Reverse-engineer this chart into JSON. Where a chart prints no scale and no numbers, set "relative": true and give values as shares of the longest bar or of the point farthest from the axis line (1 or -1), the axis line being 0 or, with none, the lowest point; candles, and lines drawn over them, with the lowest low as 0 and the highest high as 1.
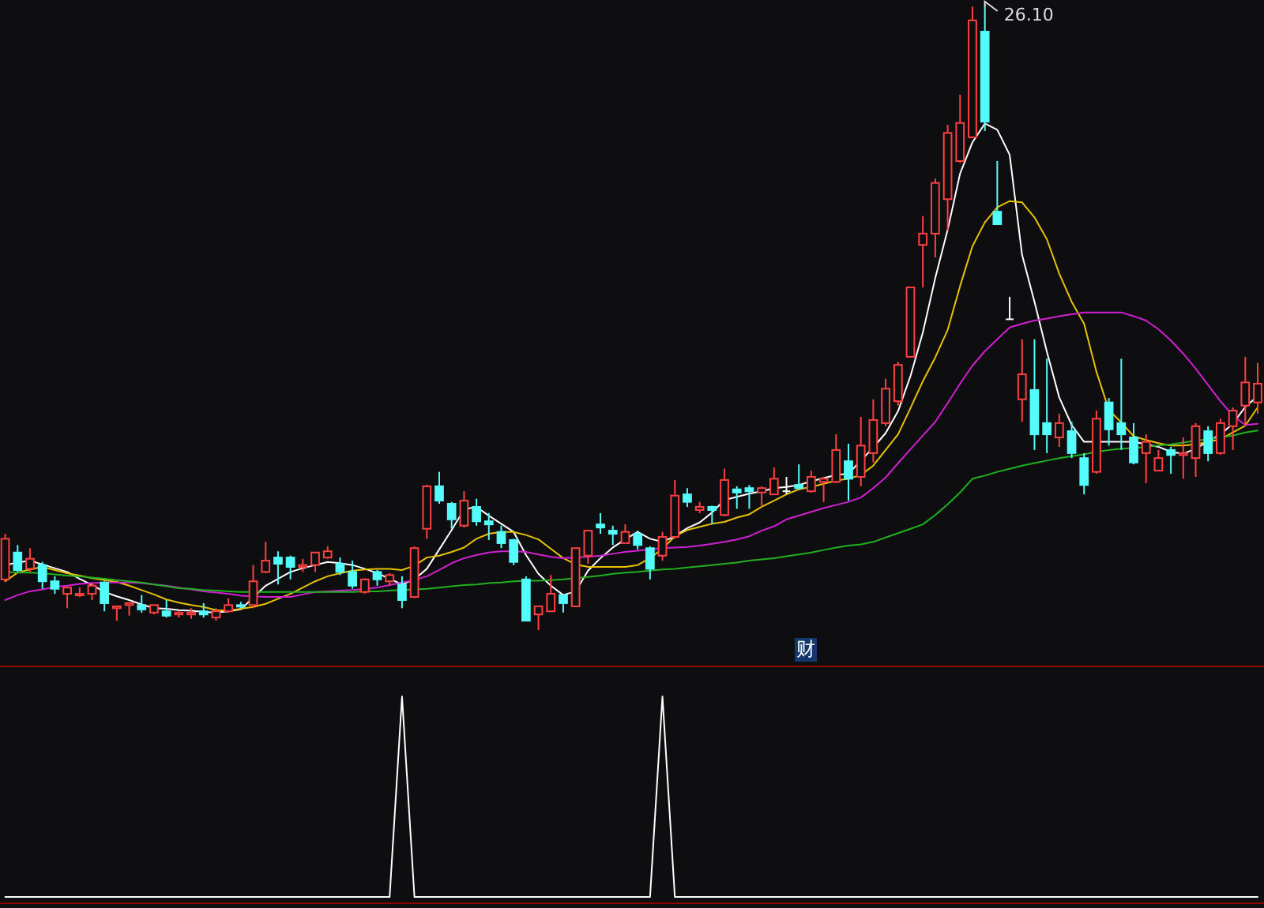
{
  "chart_data": [
    {
      "type": "candlestick",
      "relative": true,
      "categories": [
        null,
        null,
        null,
        null,
        null,
        null,
        null,
        null,
        null,
        null,
        null,
        null,
        null,
        null,
        null,
        null,
        null,
        null,
        null,
        null,
        null,
        null,
        null,
        null,
        null,
        null,
        null,
        null,
        null,
        null,
        null,
        null,
        null,
        null,
        null,
        null,
        null,
        null,
        null,
        null,
        null,
        null,
        null,
        null,
        null,
        null,
        null,
        null,
        null,
        null,
        null,
        null,
        null,
        null,
        null,
        null,
        null,
        null,
        null,
        null,
        null,
        null,
        null,
        null,
        null,
        null,
        null,
        null,
        null,
        null,
        null,
        null,
        null,
        null,
        null,
        null,
        null,
        null,
        null,
        null,
        null,
        null,
        null,
        null,
        null,
        null,
        null,
        null,
        null,
        null,
        null,
        null,
        null,
        null,
        null,
        null,
        null,
        null,
        null,
        null,
        null,
        null
      ],
      "ohlc": [
        [
          0.081,
          0.154,
          0.078,
          0.146
        ],
        [
          0.124,
          0.136,
          0.093,
          0.096
        ],
        [
          0.098,
          0.131,
          0.093,
          0.114
        ],
        [
          0.104,
          0.109,
          0.066,
          0.078
        ],
        [
          0.078,
          0.086,
          0.058,
          0.066
        ],
        [
          0.058,
          0.068,
          0.035,
          0.068
        ],
        [
          0.056,
          0.068,
          0.053,
          0.058
        ],
        [
          0.058,
          0.076,
          0.048,
          0.071
        ],
        [
          0.076,
          0.078,
          0.03,
          0.043
        ],
        [
          0.035,
          0.038,
          0.015,
          0.038
        ],
        [
          0.04,
          0.043,
          0.023,
          0.043
        ],
        [
          0.04,
          0.056,
          0.028,
          0.033
        ],
        [
          0.028,
          0.04,
          0.025,
          0.04
        ],
        [
          0.03,
          0.048,
          0.02,
          0.023
        ],
        [
          0.025,
          0.03,
          0.02,
          0.028
        ],
        [
          0.025,
          0.035,
          0.018,
          0.028
        ],
        [
          0.03,
          0.043,
          0.02,
          0.025
        ],
        [
          0.02,
          0.035,
          0.015,
          0.03
        ],
        [
          0.03,
          0.051,
          0.028,
          0.04
        ],
        [
          0.04,
          0.045,
          0.035,
          0.038
        ],
        [
          0.04,
          0.104,
          0.035,
          0.078
        ],
        [
          0.093,
          0.141,
          0.091,
          0.111
        ],
        [
          0.116,
          0.126,
          0.073,
          0.106
        ],
        [
          0.116,
          0.119,
          0.081,
          0.101
        ],
        [
          0.101,
          0.114,
          0.093,
          0.104
        ],
        [
          0.104,
          0.124,
          0.093,
          0.124
        ],
        [
          0.116,
          0.134,
          0.114,
          0.126
        ],
        [
          0.106,
          0.116,
          0.088,
          0.093
        ],
        [
          0.093,
          0.111,
          0.066,
          0.071
        ],
        [
          0.061,
          0.083,
          0.058,
          0.081
        ],
        [
          0.093,
          0.096,
          0.071,
          0.081
        ],
        [
          0.078,
          0.091,
          0.071,
          0.088
        ],
        [
          0.073,
          0.086,
          0.035,
          0.048
        ],
        [
          0.053,
          0.134,
          0.051,
          0.131
        ],
        [
          0.162,
          0.232,
          0.146,
          0.23
        ],
        [
          0.23,
          0.253,
          0.202,
          0.207
        ],
        [
          0.202,
          0.205,
          0.162,
          0.177
        ],
        [
          0.167,
          0.222,
          0.164,
          0.207
        ],
        [
          0.197,
          0.21,
          0.167,
          0.174
        ],
        [
          0.174,
          0.187,
          0.144,
          0.169
        ],
        [
          0.157,
          0.167,
          0.131,
          0.139
        ],
        [
          0.144,
          0.146,
          0.104,
          0.109
        ],
        [
          0.081,
          0.086,
          0.015,
          0.015
        ],
        [
          0.025,
          0.038,
          0,
          0.038
        ],
        [
          0.03,
          0.088,
          0.03,
          0.058
        ],
        [
          0.056,
          0.056,
          0.028,
          0.043
        ],
        [
          0.038,
          0.131,
          0.038,
          0.131
        ],
        [
          0.119,
          0.159,
          0.106,
          0.159
        ],
        [
          0.169,
          0.187,
          0.154,
          0.164
        ],
        [
          0.159,
          0.167,
          0.136,
          0.154
        ],
        [
          0.139,
          0.169,
          0.139,
          0.157
        ],
        [
          0.154,
          0.159,
          0.129,
          0.136
        ],
        [
          0.131,
          0.134,
          0.081,
          0.098
        ],
        [
          0.119,
          0.157,
          0.111,
          0.149
        ],
        [
          0.149,
          0.24,
          0.146,
          0.215
        ],
        [
          0.217,
          0.227,
          0.197,
          0.205
        ],
        [
          0.192,
          0.205,
          0.187,
          0.197
        ],
        [
          0.197,
          0.199,
          0.169,
          0.192
        ],
        [
          0.184,
          0.258,
          0.182,
          0.24
        ],
        [
          0.225,
          0.23,
          0.194,
          0.22
        ],
        [
          0.227,
          0.232,
          0.194,
          0.222
        ],
        [
          0.22,
          0.23,
          0.197,
          0.227
        ],
        [
          0.217,
          0.26,
          0.217,
          0.242
        ],
        [
          0.222,
          0.245,
          0.217,
          0.222
        ],
        [
          0.232,
          0.265,
          0.225,
          0.227
        ],
        [
          0.222,
          0.255,
          0.22,
          0.245
        ],
        [
          0.237,
          0.245,
          0.205,
          0.242
        ],
        [
          0.237,
          0.313,
          0.235,
          0.288
        ],
        [
          0.27,
          0.298,
          0.207,
          0.242
        ],
        [
          0.245,
          0.341,
          0.23,
          0.295
        ],
        [
          0.283,
          0.369,
          0.268,
          0.336
        ],
        [
          0.331,
          0.402,
          0.326,
          0.386
        ],
        [
          0.366,
          0.429,
          0.359,
          0.424
        ],
        [
          0.437,
          0.548,
          0.437,
          0.548
        ],
        [
          0.616,
          0.662,
          0.548,
          0.634
        ],
        [
          0.634,
          0.722,
          0.596,
          0.715
        ],
        [
          0.689,
          0.808,
          0.639,
          0.795
        ],
        [
          0.75,
          0.856,
          0.747,
          0.811
        ],
        [
          0.788,
          0.997,
          0.788,
          0.975
        ],
        [
          0.957,
          1,
          0.798,
          0.813
        ],
        [
          0.669,
          0.75,
          0.649,
          0.649
        ],
        [
          0.497,
          0.533,
          0.497,
          0.497
        ],
        [
          0.369,
          0.465,
          0.333,
          0.409
        ],
        [
          0.384,
          0.465,
          0.288,
          0.313
        ],
        [
          0.331,
          0.434,
          0.283,
          0.313
        ],
        [
          0.308,
          0.346,
          0.293,
          0.331
        ],
        [
          0.318,
          0.333,
          0.275,
          0.283
        ],
        [
          0.275,
          0.283,
          0.217,
          0.232
        ],
        [
          0.253,
          0.351,
          0.25,
          0.338
        ],
        [
          0.364,
          0.371,
          0.295,
          0.321
        ],
        [
          0.331,
          0.434,
          0.288,
          0.313
        ],
        [
          0.308,
          0.331,
          0.265,
          0.268
        ],
        [
          0.283,
          0.313,
          0.235,
          0.301
        ],
        [
          0.255,
          0.288,
          0.255,
          0.275
        ],
        [
          0.288,
          0.293,
          0.25,
          0.28
        ],
        [
          0.28,
          0.308,
          0.242,
          0.283
        ],
        [
          0.275,
          0.331,
          0.245,
          0.326
        ],
        [
          0.318,
          0.326,
          0.27,
          0.283
        ],
        [
          0.283,
          0.338,
          0.28,
          0.331
        ],
        [
          0.326,
          0.356,
          0.288,
          0.351
        ],
        [
          0.359,
          0.437,
          0.326,
          0.396
        ],
        [
          0.364,
          0.427,
          0.346,
          0.394
        ]
      ],
      "colors": [
        "#ff4040",
        "#54fcfc",
        "#ff4040",
        "#54fcfc",
        "#54fcfc",
        "#ff4040",
        "#ff4040",
        "#ff4040",
        "#54fcfc",
        "#ff4040",
        "#ff4040",
        "#54fcfc",
        "#ff4040",
        "#54fcfc",
        "#ff4040",
        "#ff4040",
        "#54fcfc",
        "#ff4040",
        "#ff4040",
        "#54fcfc",
        "#ff4040",
        "#ff4040",
        "#54fcfc",
        "#54fcfc",
        "#ff4040",
        "#ff4040",
        "#ff4040",
        "#54fcfc",
        "#54fcfc",
        "#ff4040",
        "#54fcfc",
        "#ff4040",
        "#54fcfc",
        "#ff4040",
        "#ff4040",
        "#54fcfc",
        "#54fcfc",
        "#ff4040",
        "#54fcfc",
        "#54fcfc",
        "#54fcfc",
        "#54fcfc",
        "#54fcfc",
        "#ff4040",
        "#ff4040",
        "#54fcfc",
        "#ff4040",
        "#ff4040",
        "#54fcfc",
        "#54fcfc",
        "#ff4040",
        "#54fcfc",
        "#54fcfc",
        "#ff4040",
        "#ff4040",
        "#54fcfc",
        "#ff4040",
        "#54fcfc",
        "#ff4040",
        "#54fcfc",
        "#54fcfc",
        "#ff4040",
        "#ff4040",
        "#ffffff",
        "#54fcfc",
        "#ff4040",
        "#ff4040",
        "#ff4040",
        "#54fcfc",
        "#ff4040",
        "#ff4040",
        "#ff4040",
        "#ff4040",
        "#ff4040",
        "#ff4040",
        "#ff4040",
        "#ff4040",
        "#ff4040",
        "#ff4040",
        "#54fcfc",
        "#54fcfc",
        "#ffffff",
        "#ff4040",
        "#54fcfc",
        "#54fcfc",
        "#ff4040",
        "#54fcfc",
        "#54fcfc",
        "#ff4040",
        "#54fcfc",
        "#54fcfc",
        "#54fcfc",
        "#ff4040",
        "#ff4040",
        "#54fcfc",
        "#ff4040",
        "#ff4040",
        "#54fcfc",
        "#ff4040",
        "#ff4040",
        "#ff4040",
        "#ff4040"
      ],
      "series": [
        {
          "type": "line",
          "color": "#ffffff",
          "values": [
            0.104,
            0.108,
            0.111,
            0.105,
            0.099,
            0.093,
            0.082,
            0.072,
            0.061,
            0.054,
            0.048,
            0.041,
            0.035,
            0.034,
            0.032,
            0.031,
            0.029,
            0.028,
            0.03,
            0.033,
            0.052,
            0.071,
            0.082,
            0.093,
            0.099,
            0.104,
            0.109,
            0.107,
            0.104,
            0.098,
            0.091,
            0.082,
            0.073,
            0.081,
            0.098,
            0.129,
            0.16,
            0.193,
            0.197,
            0.183,
            0.17,
            0.157,
            0.12,
            0.09,
            0.071,
            0.056,
            0.062,
            0.095,
            0.115,
            0.132,
            0.145,
            0.157,
            0.146,
            0.141,
            0.15,
            0.163,
            0.172,
            0.188,
            0.208,
            0.213,
            0.218,
            0.222,
            0.227,
            0.229,
            0.232,
            0.238,
            0.243,
            0.248,
            0.25,
            0.271,
            0.292,
            0.315,
            0.35,
            0.406,
            0.476,
            0.563,
            0.64,
            0.73,
            0.78,
            0.81,
            0.8,
            0.76,
            0.6,
            0.525,
            0.445,
            0.372,
            0.328,
            0.301,
            0.301,
            0.301,
            0.301,
            0.301,
            0.297,
            0.293,
            0.285,
            0.282,
            0.29,
            0.302,
            0.313,
            0.33,
            0.357,
            0.374
          ]
        },
        {
          "type": "line",
          "color": "#e6c200",
          "values": [
            0.078,
            0.092,
            0.097,
            0.101,
            0.096,
            0.091,
            0.087,
            0.083,
            0.08,
            0.077,
            0.071,
            0.064,
            0.057,
            0.049,
            0.044,
            0.04,
            0.037,
            0.032,
            0.031,
            0.034,
            0.037,
            0.042,
            0.05,
            0.058,
            0.068,
            0.078,
            0.086,
            0.091,
            0.095,
            0.097,
            0.098,
            0.098,
            0.096,
            0.103,
            0.116,
            0.119,
            0.125,
            0.132,
            0.146,
            0.154,
            0.157,
            0.157,
            0.152,
            0.145,
            0.13,
            0.115,
            0.105,
            0.101,
            0.101,
            0.101,
            0.101,
            0.104,
            0.115,
            0.13,
            0.15,
            0.16,
            0.165,
            0.17,
            0.173,
            0.18,
            0.185,
            0.197,
            0.207,
            0.217,
            0.225,
            0.229,
            0.234,
            0.239,
            0.242,
            0.248,
            0.263,
            0.288,
            0.313,
            0.355,
            0.398,
            0.436,
            0.48,
            0.55,
            0.614,
            0.652,
            0.676,
            0.686,
            0.684,
            0.66,
            0.625,
            0.57,
            0.525,
            0.49,
            0.413,
            0.352,
            0.332,
            0.31,
            0.304,
            0.299,
            0.295,
            0.295,
            0.297,
            0.301,
            0.305,
            0.316,
            0.327,
            0.356
          ]
        },
        {
          "type": "line",
          "color": "#d020d0",
          "values": [
            0.048,
            0.056,
            0.062,
            0.065,
            0.069,
            0.071,
            0.074,
            0.075,
            0.076,
            0.076,
            0.076,
            0.075,
            0.073,
            0.071,
            0.068,
            0.065,
            0.062,
            0.06,
            0.058,
            0.055,
            0.054,
            0.053,
            0.053,
            0.053,
            0.057,
            0.061,
            0.062,
            0.063,
            0.064,
            0.066,
            0.068,
            0.072,
            0.076,
            0.08,
            0.086,
            0.096,
            0.107,
            0.115,
            0.12,
            0.124,
            0.126,
            0.126,
            0.125,
            0.121,
            0.117,
            0.115,
            0.116,
            0.117,
            0.119,
            0.122,
            0.125,
            0.127,
            0.129,
            0.131,
            0.132,
            0.133,
            0.135,
            0.138,
            0.141,
            0.145,
            0.15,
            0.159,
            0.166,
            0.177,
            0.183,
            0.189,
            0.195,
            0.2,
            0.205,
            0.212,
            0.227,
            0.244,
            0.267,
            0.289,
            0.311,
            0.333,
            0.363,
            0.394,
            0.423,
            0.446,
            0.465,
            0.484,
            0.49,
            0.495,
            0.498,
            0.502,
            0.505,
            0.508,
            0.508,
            0.508,
            0.508,
            0.502,
            0.495,
            0.481,
            0.463,
            0.442,
            0.418,
            0.392,
            0.366,
            0.343,
            0.328,
            0.33
          ]
        },
        {
          "type": "line",
          "color": "#20b020",
          "values": [
            0.093,
            0.092,
            0.092,
            0.091,
            0.089,
            0.087,
            0.086,
            0.084,
            0.082,
            0.08,
            0.078,
            0.076,
            0.073,
            0.07,
            0.067,
            0.066,
            0.064,
            0.063,
            0.062,
            0.061,
            0.061,
            0.061,
            0.061,
            0.061,
            0.061,
            0.061,
            0.061,
            0.061,
            0.061,
            0.062,
            0.062,
            0.063,
            0.064,
            0.065,
            0.066,
            0.068,
            0.07,
            0.072,
            0.073,
            0.075,
            0.076,
            0.078,
            0.079,
            0.079,
            0.08,
            0.081,
            0.083,
            0.085,
            0.087,
            0.09,
            0.092,
            0.093,
            0.095,
            0.097,
            0.098,
            0.1,
            0.102,
            0.104,
            0.106,
            0.108,
            0.111,
            0.113,
            0.115,
            0.118,
            0.121,
            0.124,
            0.128,
            0.132,
            0.135,
            0.137,
            0.141,
            0.148,
            0.155,
            0.162,
            0.169,
            0.184,
            0.201,
            0.22,
            0.242,
            0.247,
            0.253,
            0.258,
            0.263,
            0.267,
            0.271,
            0.275,
            0.278,
            0.281,
            0.285,
            0.288,
            0.29,
            0.291,
            0.293,
            0.295,
            0.297,
            0.3,
            0.303,
            0.305,
            0.308,
            0.311,
            0.316,
            0.319
          ]
        }
      ],
      "annotations": [
        "26.10",
        "财"
      ]
    },
    {
      "type": "line",
      "relative": true,
      "categories": [
        null,
        null,
        null,
        null,
        null,
        null,
        null,
        null,
        null,
        null,
        null,
        null,
        null,
        null,
        null,
        null,
        null,
        null,
        null,
        null,
        null,
        null,
        null,
        null,
        null,
        null,
        null,
        null,
        null,
        null,
        null,
        null,
        null,
        null,
        null,
        null,
        null,
        null,
        null,
        null,
        null,
        null,
        null,
        null,
        null,
        null,
        null,
        null,
        null,
        null,
        null,
        null,
        null,
        null,
        null,
        null,
        null,
        null,
        null,
        null,
        null,
        null,
        null,
        null,
        null,
        null,
        null,
        null,
        null,
        null,
        null,
        null,
        null,
        null,
        null,
        null,
        null,
        null,
        null,
        null,
        null,
        null,
        null,
        null,
        null,
        null,
        null,
        null,
        null,
        null,
        null,
        null,
        null,
        null,
        null,
        null,
        null,
        null,
        null,
        null,
        null,
        null
      ],
      "series": [
        {
          "color": "#ffffff",
          "values": [
            0,
            0,
            0,
            0,
            0,
            0,
            0,
            0,
            0,
            0,
            0,
            0,
            0,
            0,
            0,
            0,
            0,
            0,
            0,
            0,
            0,
            0,
            0,
            0,
            0,
            0,
            0,
            0,
            0,
            0,
            0,
            0,
            1,
            0,
            0,
            0,
            0,
            0,
            0,
            0,
            0,
            0,
            0,
            0,
            0,
            0,
            0,
            0,
            0,
            0,
            0,
            0,
            0,
            1,
            0,
            0,
            0,
            0,
            0,
            0,
            0,
            0,
            0,
            0,
            0,
            0,
            0,
            0,
            0,
            0,
            0,
            0,
            0,
            0,
            0,
            0,
            0,
            0,
            0,
            0,
            0,
            0,
            0,
            0,
            0,
            0,
            0,
            0,
            0,
            0,
            0,
            0,
            0,
            0,
            0,
            0,
            0,
            0,
            0,
            0,
            0,
            0
          ]
        }
      ]
    }
  ]
}
